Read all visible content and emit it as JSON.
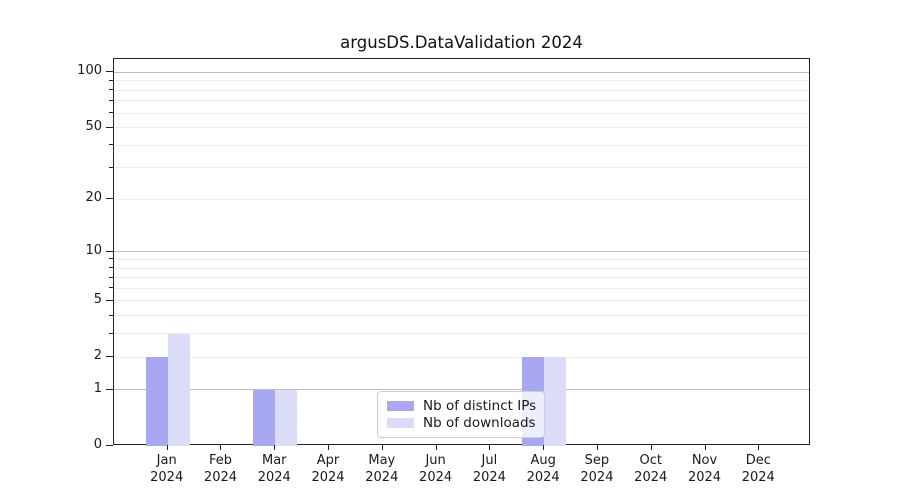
{
  "chart_data": {
    "type": "bar",
    "title": "argusDS.DataValidation 2024",
    "x_year": "2024",
    "categories": [
      "Jan",
      "Feb",
      "Mar",
      "Apr",
      "May",
      "Jun",
      "Jul",
      "Aug",
      "Sep",
      "Oct",
      "Nov",
      "Dec"
    ],
    "series": [
      {
        "name": "Nb of distinct IPs",
        "color": "#a7a8f1",
        "values": [
          2,
          0,
          1,
          0,
          0,
          0,
          0,
          2,
          0,
          0,
          0,
          0
        ]
      },
      {
        "name": "Nb of downloads",
        "color": "#dadcf8",
        "values": [
          3,
          0,
          1,
          0,
          0,
          0,
          0,
          2,
          0,
          0,
          0,
          0
        ]
      }
    ],
    "y_axis": {
      "scale": "log1p",
      "min": 0,
      "max": 118,
      "labeled_ticks": [
        0,
        1,
        2,
        5,
        10,
        20,
        50,
        100
      ],
      "minor_ticks": [
        3,
        4,
        6,
        7,
        8,
        9,
        30,
        40,
        60,
        70,
        80,
        90
      ],
      "major_gridlines": [
        1,
        10,
        100
      ],
      "minor_gridlines": [
        2,
        3,
        4,
        5,
        6,
        7,
        8,
        9,
        20,
        30,
        40,
        50,
        60,
        70,
        80,
        90
      ]
    },
    "legend": {
      "position": "lower center",
      "entries": [
        "Nb of distinct IPs",
        "Nb of downloads"
      ]
    },
    "colors": {
      "background": "#ffffff",
      "spine": "#222222",
      "grid_major": "#bdbdbd",
      "grid_minor": "#ededed",
      "text": "#1a1a1a"
    }
  }
}
